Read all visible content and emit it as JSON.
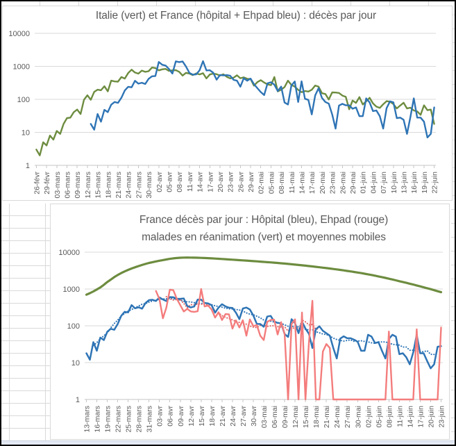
{
  "app": {
    "background_color": "#ffffff",
    "frame_color": "#000000",
    "gridline_color": "#d9d9d9",
    "text_color": "#595959"
  },
  "chart_data": [
    {
      "type": "line",
      "title": "Italie (vert) et France (hôpital + Ehpad bleu) : décès par jour",
      "y_scale": "log",
      "ylim": [
        1,
        10000
      ],
      "grid": true,
      "legend_position": "none",
      "y_tick_labels": [
        "10000",
        "1000",
        "100",
        "10",
        "1"
      ],
      "x_tick_step_days": 3,
      "x_tick_labels": [
        "26-févr",
        "29-févr",
        "03-mars",
        "06-mars",
        "09-mars",
        "12-mars",
        "15-mars",
        "18-mars",
        "21-mars",
        "24-mars",
        "27-mars",
        "30-mars",
        "02-avr",
        "05-avr",
        "08-avr",
        "11-avr",
        "14-avr",
        "17-avr",
        "20-avr",
        "23-avr",
        "26-avr",
        "29-avr",
        "02-mai",
        "05-mai",
        "08-mai",
        "11-mai",
        "14-mai",
        "17-mai",
        "20-mai",
        "23-mai",
        "26-mai",
        "29-mai",
        "01-juin",
        "04-juin",
        "07-juin",
        "10-juin",
        "13-juin",
        "16-juin",
        "19-juin",
        "22-juin"
      ],
      "series": [
        {
          "key": "italie",
          "name": "Italie décès par jour",
          "color": "#6d8c3f",
          "width": 2.4,
          "values": [
            3,
            2,
            5,
            4,
            8,
            6,
            11,
            9,
            18,
            27,
            28,
            41,
            49,
            36,
            97,
            133,
            97,
            168,
            196,
            189,
            250,
            175,
            368,
            349,
            345,
            475,
            427,
            627,
            793,
            651,
            601,
            743,
            683,
            712,
            919,
            889,
            756,
            812,
            837,
            727,
            760,
            766,
            681,
            525,
            636,
            604,
            542,
            610,
            570,
            619,
            431,
            566,
            602,
            578,
            525,
            575,
            482,
            433,
            454,
            534,
            437,
            464,
            420,
            415,
            260,
            333,
            382,
            323,
            285,
            269,
            474,
            174,
            195,
            236,
            369,
            274,
            243,
            194,
            165,
            179,
            172,
            195,
            262,
            242,
            153,
            145,
            99,
            162,
            161,
            156,
            130,
            119,
            50,
            92,
            78,
            117,
            70,
            87,
            111,
            75,
            60,
            55,
            71,
            88,
            85,
            72,
            53,
            65,
            79,
            53,
            56,
            46,
            43,
            34,
            66,
            47,
            49,
            18
          ]
        },
        {
          "key": "france-hopital-ehpad",
          "name": "France décès hôpital + Ehpad par jour",
          "color": "#2e74b5",
          "width": 2.4,
          "values": [
            null,
            null,
            null,
            null,
            null,
            null,
            null,
            null,
            null,
            null,
            null,
            null,
            null,
            null,
            null,
            null,
            18,
            12,
            36,
            21,
            48,
            41,
            69,
            83,
            78,
            112,
            186,
            240,
            231,
            365,
            299,
            319,
            292,
            418,
            499,
            509,
            1355,
            1120,
            1053,
            833,
            605,
            1417,
            1341,
            1408,
            987,
            635,
            561,
            574,
            762,
            1438,
            753,
            761,
            642,
            395,
            547,
            531,
            544,
            516,
            389,
            369,
            242,
            437,
            367,
            427,
            289,
            218,
            166,
            135,
            306,
            330,
            278,
            178,
            243,
            80,
            70,
            263,
            348,
            83,
            351,
            104,
            96,
            35,
            131,
            217,
            110,
            83,
            74,
            35,
            13,
            65,
            73,
            66,
            66,
            52,
            57,
            31,
            31,
            107,
            81,
            44,
            46,
            31,
            13,
            54,
            87,
            81,
            27,
            28,
            24,
            9,
            29,
            107,
            28,
            28,
            21,
            7,
            9,
            57
          ]
        }
      ]
    },
    {
      "type": "line",
      "title": "France décès par jour : Hôpital (bleu), Ehpad (rouge)",
      "subtitle": "malades en réanimation (vert) et moyennes mobiles",
      "y_scale": "log",
      "ylim": [
        1,
        10000
      ],
      "grid": true,
      "legend_position": "none",
      "y_tick_labels": [
        "10000",
        "1000",
        "100",
        "10",
        "1"
      ],
      "x_tick_step_days": 3,
      "x_tick_labels": [
        "13-mars",
        "16-mars",
        "19-mars",
        "22-mars",
        "25-mars",
        "28-mars",
        "31-mars",
        "03-avr",
        "06-avr",
        "09-avr",
        "12-avr",
        "15-avr",
        "18-avr",
        "21-avr",
        "24-avr",
        "27-avr",
        "30-avr",
        "03-mai",
        "06-mai",
        "09-mai",
        "12-mai",
        "15-mai",
        "18-mai",
        "21-mai",
        "24-mai",
        "27-mai",
        "30-mai",
        "02-juin",
        "05-juin",
        "08-juin",
        "11-juin",
        "14-juin",
        "17-juin",
        "20-juin",
        "23-juin"
      ],
      "series": [
        {
          "key": "reanimation",
          "name": "Malades en réanimation",
          "color": "#6d8c3f",
          "width": 3.2,
          "values": [
            700,
            770,
            860,
            970,
            1100,
            1300,
            1550,
            1800,
            2100,
            2400,
            2700,
            3000,
            3300,
            3600,
            3900,
            4200,
            4500,
            4800,
            5100,
            5350,
            5600,
            5850,
            6100,
            6350,
            6600,
            6800,
            6950,
            7050,
            7120,
            7150,
            7130,
            7100,
            7060,
            7010,
            6950,
            6880,
            6800,
            6710,
            6620,
            6530,
            6440,
            6350,
            6260,
            6170,
            6080,
            5990,
            5900,
            5810,
            5720,
            5630,
            5540,
            5450,
            5360,
            5270,
            5180,
            5090,
            5000,
            4900,
            4800,
            4700,
            4600,
            4500,
            4400,
            4300,
            4200,
            4100,
            4000,
            3900,
            3800,
            3700,
            3600,
            3500,
            3400,
            3300,
            3200,
            3100,
            3000,
            2900,
            2800,
            2700,
            2600,
            2500,
            2400,
            2300,
            2200,
            2100,
            2000,
            1900,
            1810,
            1720,
            1630,
            1550,
            1470,
            1390,
            1320,
            1250,
            1180,
            1110,
            1050,
            990,
            930,
            870,
            820
          ]
        },
        {
          "key": "hopital",
          "name": "Décès hôpital",
          "color": "#2e74b5",
          "width": 2.5,
          "values": [
            18,
            12,
            36,
            21,
            48,
            41,
            69,
            83,
            78,
            112,
            186,
            240,
            231,
            365,
            299,
            319,
            292,
            418,
            499,
            509,
            471,
            588,
            519,
            471,
            605,
            597,
            541,
            542,
            554,
            345,
            315,
            335,
            514,
            513,
            417,
            405,
            364,
            227,
            314,
            387,
            336,
            311,
            305,
            228,
            152,
            295,
            313,
            278,
            191,
            113,
            112,
            94,
            178,
            186,
            131,
            120,
            117,
            60,
            50,
            151,
            118,
            63,
            131,
            84,
            61,
            25,
            81,
            97,
            73,
            63,
            54,
            25,
            13,
            45,
            52,
            46,
            46,
            42,
            37,
            21,
            21,
            57,
            51,
            34,
            36,
            21,
            13,
            44,
            57,
            51,
            17,
            18,
            14,
            9,
            19,
            57,
            18,
            18,
            11,
            7,
            9,
            27,
            28
          ],
          "moving_average": {
            "window": 7,
            "color": "#2e74b5",
            "style": "dotted",
            "draw_from": 2,
            "draw_to": 100
          }
        },
        {
          "key": "ehpad",
          "name": "Décès Ehpad",
          "color": "#f47c7c",
          "width": 2.4,
          "values": [
            null,
            null,
            null,
            null,
            null,
            null,
            null,
            null,
            null,
            null,
            null,
            null,
            null,
            null,
            null,
            null,
            null,
            null,
            null,
            null,
            884,
            532,
            160,
            314,
            962,
            930,
            540,
            362,
            245,
            290,
            246,
            239,
            248,
            1000,
            336,
            356,
            278,
            168,
            233,
            144,
            208,
            205,
            84,
            141,
            90,
            142,
            54,
            149,
            98,
            105,
            54,
            41,
            128,
            144,
            147,
            58,
            126,
            60,
            1,
            112,
            150,
            1,
            230,
            1,
            35,
            480,
            1,
            1,
            20,
            32,
            25,
            1,
            1,
            1,
            1,
            1,
            1,
            1,
            1,
            1,
            1,
            1,
            1,
            1,
            1,
            1,
            1,
            70,
            1,
            1,
            1,
            1,
            1,
            1,
            1,
            80,
            1,
            1,
            1,
            1,
            1,
            1,
            90
          ],
          "moving_average": {
            "window": 7,
            "color": "#e06666",
            "style": "dotted",
            "draw_from": 23,
            "draw_to": 67,
            "zeros_as_one": true
          }
        }
      ]
    }
  ]
}
